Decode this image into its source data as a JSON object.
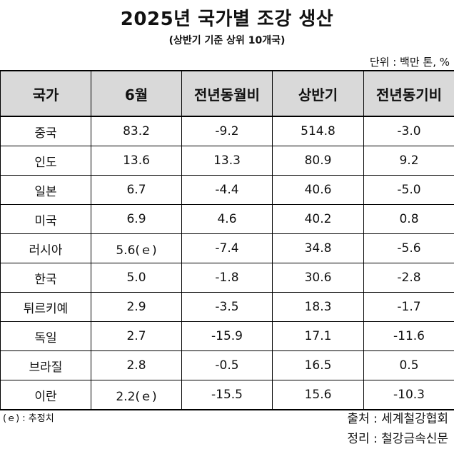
{
  "title": "2025년 국가별 조강 생산",
  "subtitle": "(상반기 기준 상위 10개국)",
  "unit": "단위 : 백만 톤, %",
  "table": {
    "headers": [
      "국가",
      "6월",
      "전년동월비",
      "상반기",
      "전년동기비"
    ],
    "rows": [
      [
        "중국",
        "83.2",
        "-9.2",
        "514.8",
        "-3.0"
      ],
      [
        "인도",
        "13.6",
        "13.3",
        "80.9",
        "9.2"
      ],
      [
        "일본",
        "6.7",
        "-4.4",
        "40.6",
        "-5.0"
      ],
      [
        "미국",
        "6.9",
        "4.6",
        "40.2",
        "0.8"
      ],
      [
        "러시아",
        "5.6(ｅ)",
        "-7.4",
        "34.8",
        "-5.6"
      ],
      [
        "한국",
        "5.0",
        "-1.8",
        "30.6",
        "-2.8"
      ],
      [
        "튀르키예",
        "2.9",
        "-3.5",
        "18.3",
        "-1.7"
      ],
      [
        "독일",
        "2.7",
        "-15.9",
        "17.1",
        "-11.6"
      ],
      [
        "브라질",
        "2.8",
        "-0.5",
        "16.5",
        "0.5"
      ],
      [
        "이란",
        "2.2(ｅ)",
        "-15.5",
        "15.6",
        "-10.3"
      ]
    ]
  },
  "footer": {
    "note": "(ｅ) : 추정치",
    "source": "출처 : 세계철강협회",
    "editor": "정리 : 철강금속신문"
  }
}
